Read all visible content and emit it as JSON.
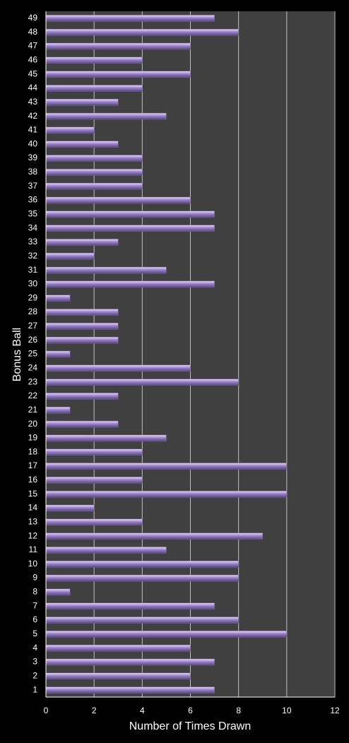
{
  "chart_data": {
    "type": "hbar",
    "x_label": "Number of Times Drawn",
    "y_label": "Bonus Ball",
    "categories": [
      "1",
      "2",
      "3",
      "4",
      "5",
      "6",
      "7",
      "8",
      "9",
      "10",
      "11",
      "12",
      "13",
      "14",
      "15",
      "16",
      "17",
      "18",
      "19",
      "20",
      "21",
      "22",
      "23",
      "24",
      "25",
      "26",
      "27",
      "28",
      "29",
      "30",
      "31",
      "32",
      "33",
      "34",
      "35",
      "36",
      "37",
      "38",
      "39",
      "40",
      "41",
      "42",
      "43",
      "44",
      "45",
      "46",
      "47",
      "48",
      "49"
    ],
    "values": [
      7,
      6,
      7,
      6,
      10,
      8,
      7,
      1,
      8,
      8,
      5,
      9,
      4,
      2,
      10,
      4,
      10,
      4,
      5,
      3,
      1,
      3,
      8,
      6,
      1,
      3,
      3,
      3,
      1,
      7,
      5,
      2,
      3,
      7,
      7,
      6,
      4,
      4,
      4,
      3,
      2,
      5,
      3,
      4,
      6,
      4,
      6,
      8,
      7
    ],
    "color": "#9b82c8",
    "xlim": [
      0,
      12
    ],
    "xticks": [
      0,
      2,
      4,
      6,
      8,
      10,
      12
    ],
    "grid": true
  }
}
